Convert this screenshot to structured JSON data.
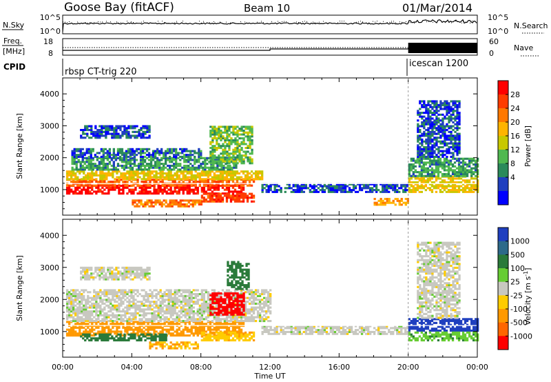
{
  "header": {
    "station": "Goose Bay (fitACF)",
    "beam": "Beam 10",
    "date": "01/Mar/2014"
  },
  "noise_panel": {
    "left_label": "N.Sky",
    "left_ticks": [
      "10^5",
      "10^0"
    ],
    "right_ticks": [
      "10^5",
      "10^0"
    ],
    "right_label": "N.Search"
  },
  "freq_panel": {
    "left_label_1": "Freq.",
    "left_label_2": "[MHz]",
    "left_ticks": [
      "18",
      "8"
    ],
    "right_ticks": [
      "60",
      "0"
    ],
    "right_label": "Nave"
  },
  "cpid_panel": {
    "label": "CPID",
    "modes": [
      {
        "name": "rbsp CT-trig 220",
        "start_hour": 0
      },
      {
        "name": "icescan 1200",
        "start_hour": 20
      }
    ]
  },
  "power_scale": {
    "label": "Power [dB]",
    "ticks": [
      "28",
      "24",
      "20",
      "16",
      "12",
      "8",
      "4"
    ],
    "colors": [
      "#ff0000",
      "#ff3c00",
      "#ff7800",
      "#ffb400",
      "#c8c800",
      "#50b850",
      "#2a8a5a",
      "#1f3fbf",
      "#0000ff"
    ]
  },
  "velocity_scale": {
    "label": "Velocity [m s",
    "label_sup": "-1",
    "label_close": "]",
    "ticks": [
      "1000",
      "500",
      "100",
      "25",
      "-25",
      "-100",
      "-500",
      "-1000"
    ],
    "colors": [
      "#1f3fbf",
      "#2d6a8a",
      "#2a7a3a",
      "#66cc33",
      "#c8c8c0",
      "#ffcc00",
      "#ff9900",
      "#ff6600",
      "#ff0000"
    ]
  },
  "chart_data": [
    {
      "type": "heatmap",
      "panel": "power",
      "ylabel": "Slant Range [km]",
      "ylim": [
        200,
        4500
      ],
      "xlim_hours": [
        0,
        24
      ],
      "yticks": [
        "1000",
        "2000",
        "3000",
        "4000"
      ],
      "regions": [
        {
          "t0": 0.2,
          "t1": 10.5,
          "r0": 850,
          "r1": 1100,
          "value": 28
        },
        {
          "t0": 0.2,
          "t1": 11.0,
          "r0": 1100,
          "r1": 1300,
          "value": 22
        },
        {
          "t0": 0.2,
          "t1": 11.5,
          "r0": 1300,
          "r1": 1600,
          "value": 14
        },
        {
          "t0": 0.5,
          "t1": 10.0,
          "r0": 1600,
          "r1": 2000,
          "value": 8
        },
        {
          "t0": 0.5,
          "t1": 8.0,
          "r0": 2000,
          "r1": 2300,
          "value": 6
        },
        {
          "t0": 1.0,
          "t1": 5.0,
          "r0": 2600,
          "r1": 3000,
          "value": 5
        },
        {
          "t0": 4.0,
          "t1": 8.0,
          "r0": 450,
          "r1": 650,
          "value": 20
        },
        {
          "t0": 8.5,
          "t1": 11.0,
          "r0": 1800,
          "r1": 3000,
          "value": 10
        },
        {
          "t0": 8.0,
          "t1": 11.0,
          "r0": 600,
          "r1": 900,
          "value": 24
        },
        {
          "t0": 11.5,
          "t1": 20.0,
          "r0": 900,
          "r1": 1200,
          "value": 5
        },
        {
          "t0": 18.0,
          "t1": 20.0,
          "r0": 500,
          "r1": 700,
          "value": 18
        },
        {
          "t0": 20.0,
          "t1": 24.0,
          "r0": 900,
          "r1": 1400,
          "value": 14
        },
        {
          "t0": 20.0,
          "t1": 24.0,
          "r0": 1400,
          "r1": 2000,
          "value": 8
        },
        {
          "t0": 20.5,
          "t1": 23.0,
          "r0": 2000,
          "r1": 3800,
          "value": 5
        }
      ]
    },
    {
      "type": "heatmap",
      "panel": "velocity",
      "ylabel": "Slant Range [km]",
      "xlabel": "Time UT",
      "ylim": [
        200,
        4500
      ],
      "xlim_hours": [
        0,
        24
      ],
      "yticks": [
        "1000",
        "2000",
        "3000",
        "4000"
      ],
      "xticks": [
        "00:00",
        "04:00",
        "08:00",
        "12:00",
        "16:00",
        "20:00",
        "00:00"
      ],
      "regions": [
        {
          "t0": 0.2,
          "t1": 10.5,
          "r0": 850,
          "r1": 1300,
          "value": -150
        },
        {
          "t0": 1.0,
          "t1": 6.0,
          "r0": 700,
          "r1": 900,
          "value": 150
        },
        {
          "t0": 0.2,
          "t1": 12.0,
          "r0": 1300,
          "r1": 2300,
          "value": 0
        },
        {
          "t0": 1.0,
          "t1": 5.0,
          "r0": 2600,
          "r1": 3000,
          "value": 0
        },
        {
          "t0": 5.0,
          "t1": 8.0,
          "r0": 450,
          "r1": 650,
          "value": -100
        },
        {
          "t0": 8.5,
          "t1": 10.5,
          "r0": 1500,
          "r1": 2200,
          "value": -600
        },
        {
          "t0": 9.5,
          "t1": 10.8,
          "r0": 2300,
          "r1": 3200,
          "value": 150
        },
        {
          "t0": 8.0,
          "t1": 11.0,
          "r0": 700,
          "r1": 1000,
          "value": -80
        },
        {
          "t0": 11.5,
          "t1": 20.0,
          "r0": 900,
          "r1": 1200,
          "value": 0
        },
        {
          "t0": 20.0,
          "t1": 24.0,
          "r0": 1000,
          "r1": 1400,
          "value": 700
        },
        {
          "t0": 20.0,
          "t1": 24.0,
          "r0": 700,
          "r1": 1000,
          "value": 80
        },
        {
          "t0": 20.5,
          "t1": 23.0,
          "r0": 1400,
          "r1": 3800,
          "value": 0
        }
      ]
    }
  ]
}
